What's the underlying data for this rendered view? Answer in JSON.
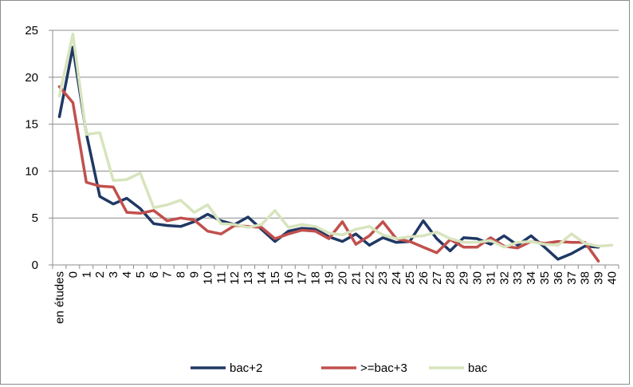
{
  "chart_data": {
    "type": "line",
    "title": "",
    "xlabel": "",
    "ylabel": "",
    "ylim": [
      0,
      25
    ],
    "yticks": [
      0,
      5,
      10,
      15,
      20,
      25
    ],
    "grid": "horizontal",
    "legend_position": "bottom",
    "categories": [
      "en études",
      "0",
      "1",
      "2",
      "3",
      "4",
      "5",
      "6",
      "7",
      "8",
      "9",
      "10",
      "11",
      "12",
      "13",
      "14",
      "15",
      "16",
      "17",
      "18",
      "19",
      "20",
      "21",
      "22",
      "23",
      "24",
      "25",
      "26",
      "27",
      "28",
      "29",
      "30",
      "31",
      "32",
      "33",
      "34",
      "35",
      "36",
      "37",
      "38",
      "39",
      "40"
    ],
    "series": [
      {
        "name": "bac+2",
        "color": "#1f3864",
        "values": [
          15.8,
          23.2,
          14.0,
          7.3,
          6.5,
          7.1,
          6.0,
          4.4,
          4.2,
          4.1,
          4.6,
          5.4,
          4.7,
          4.3,
          5.1,
          3.8,
          2.5,
          3.6,
          3.9,
          3.8,
          3.0,
          2.5,
          3.3,
          2.1,
          2.9,
          2.4,
          2.5,
          4.7,
          2.8,
          1.5,
          2.9,
          2.8,
          2.2,
          3.1,
          2.1,
          3.1,
          1.9,
          0.6,
          1.2,
          2.0,
          1.9,
          null
        ]
      },
      {
        "name": ">=bac+3",
        "color": "#c0504d",
        "values": [
          19.0,
          17.3,
          8.8,
          8.4,
          8.3,
          5.6,
          5.5,
          5.8,
          4.7,
          5.0,
          4.8,
          3.6,
          3.3,
          4.2,
          4.1,
          4.0,
          2.8,
          3.3,
          3.7,
          3.6,
          2.8,
          4.6,
          2.2,
          3.1,
          4.6,
          2.8,
          2.5,
          1.9,
          1.3,
          2.7,
          1.9,
          1.9,
          2.9,
          2.0,
          1.8,
          2.5,
          2.3,
          2.5,
          2.4,
          2.4,
          0.4,
          null
        ]
      },
      {
        "name": "bac",
        "color": "#d7e4bd",
        "values": [
          18.0,
          24.6,
          13.9,
          14.1,
          9.0,
          9.1,
          9.8,
          6.1,
          6.4,
          6.9,
          5.6,
          6.4,
          4.4,
          4.3,
          4.0,
          4.3,
          5.8,
          4.0,
          4.3,
          4.1,
          3.4,
          3.2,
          3.8,
          4.1,
          3.2,
          2.8,
          3.0,
          3.1,
          3.5,
          2.8,
          2.4,
          2.4,
          2.6,
          1.9,
          2.4,
          2.5,
          2.2,
          2.1,
          3.3,
          2.3,
          2.0,
          2.1
        ]
      }
    ]
  }
}
